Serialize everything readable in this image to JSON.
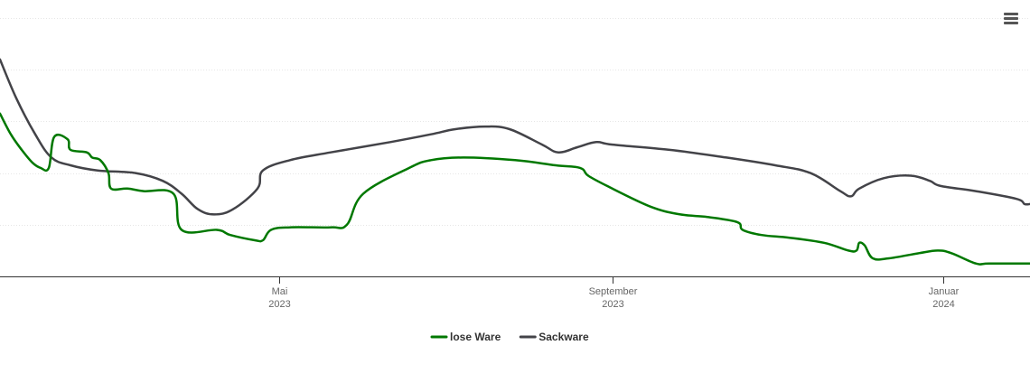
{
  "chart_data": {
    "type": "line",
    "title": "",
    "xlabel": "",
    "ylabel": "",
    "grid": true,
    "legend_position": "bottom",
    "x_axis_type": "date",
    "xlim": [
      "2023-01-18",
      "2024-02-02"
    ],
    "ylim": [
      0,
      100
    ],
    "x_ticks": [
      {
        "date": "2023-05-01",
        "label_month": "Mai",
        "label_year": "2023"
      },
      {
        "date": "2023-09-01",
        "label_month": "September",
        "label_year": "2023"
      },
      {
        "date": "2024-01-01",
        "label_month": "Januar",
        "label_year": "2024"
      }
    ],
    "series": [
      {
        "name": "lose Ware",
        "color": "#007800",
        "points": [
          [
            "2023-01-18",
            63
          ],
          [
            "2023-01-22",
            55
          ],
          [
            "2023-01-26",
            49
          ],
          [
            "2023-01-30",
            44
          ],
          [
            "2023-02-02",
            42
          ],
          [
            "2023-02-05",
            42
          ],
          [
            "2023-02-07",
            54
          ],
          [
            "2023-02-12",
            53
          ],
          [
            "2023-02-13",
            49
          ],
          [
            "2023-02-19",
            48
          ],
          [
            "2023-02-21",
            46
          ],
          [
            "2023-02-24",
            45
          ],
          [
            "2023-02-27",
            40
          ],
          [
            "2023-02-28",
            34
          ],
          [
            "2023-03-06",
            34
          ],
          [
            "2023-03-12",
            33
          ],
          [
            "2023-03-23",
            32
          ],
          [
            "2023-03-26",
            18
          ],
          [
            "2023-04-08",
            18
          ],
          [
            "2023-04-13",
            16
          ],
          [
            "2023-04-22",
            14
          ],
          [
            "2023-04-25",
            14
          ],
          [
            "2023-04-28",
            18
          ],
          [
            "2023-05-05",
            19
          ],
          [
            "2023-05-20",
            19
          ],
          [
            "2023-05-26",
            20
          ],
          [
            "2023-06-01",
            32
          ],
          [
            "2023-06-18",
            42
          ],
          [
            "2023-06-26",
            45
          ],
          [
            "2023-07-08",
            46
          ],
          [
            "2023-07-27",
            45
          ],
          [
            "2023-08-11",
            43
          ],
          [
            "2023-08-20",
            42
          ],
          [
            "2023-08-23",
            39
          ],
          [
            "2023-08-30",
            35
          ],
          [
            "2023-09-15",
            27
          ],
          [
            "2023-09-26",
            24
          ],
          [
            "2023-10-06",
            23
          ],
          [
            "2023-10-17",
            21
          ],
          [
            "2023-10-19",
            18
          ],
          [
            "2023-10-26",
            16
          ],
          [
            "2023-11-05",
            15
          ],
          [
            "2023-11-18",
            13
          ],
          [
            "2023-11-27",
            10
          ],
          [
            "2023-11-30",
            10
          ],
          [
            "2023-12-01",
            13
          ],
          [
            "2023-12-03",
            12
          ],
          [
            "2023-12-06",
            7
          ],
          [
            "2023-12-12",
            7
          ],
          [
            "2023-12-23",
            9
          ],
          [
            "2023-12-30",
            10
          ],
          [
            "2024-01-04",
            9
          ],
          [
            "2024-01-13",
            5
          ],
          [
            "2024-01-18",
            5
          ],
          [
            "2024-02-02",
            5
          ]
        ]
      },
      {
        "name": "Sackware",
        "color": "#434348",
        "points": [
          [
            "2023-01-18",
            84
          ],
          [
            "2023-01-24",
            69
          ],
          [
            "2023-01-31",
            55
          ],
          [
            "2023-02-06",
            46
          ],
          [
            "2023-02-13",
            43
          ],
          [
            "2023-02-23",
            41
          ],
          [
            "2023-03-09",
            40
          ],
          [
            "2023-03-19",
            37
          ],
          [
            "2023-03-26",
            32
          ],
          [
            "2023-04-01",
            26
          ],
          [
            "2023-04-07",
            24
          ],
          [
            "2023-04-14",
            26
          ],
          [
            "2023-04-23",
            34
          ],
          [
            "2023-04-25",
            41
          ],
          [
            "2023-05-05",
            45
          ],
          [
            "2023-05-20",
            48
          ],
          [
            "2023-06-11",
            52
          ],
          [
            "2023-06-26",
            55
          ],
          [
            "2023-07-05",
            57
          ],
          [
            "2023-07-16",
            58
          ],
          [
            "2023-07-25",
            57
          ],
          [
            "2023-08-06",
            51
          ],
          [
            "2023-08-12",
            48
          ],
          [
            "2023-08-19",
            50
          ],
          [
            "2023-08-26",
            52
          ],
          [
            "2023-09-01",
            51
          ],
          [
            "2023-09-22",
            49
          ],
          [
            "2023-10-13",
            46
          ],
          [
            "2023-10-31",
            43
          ],
          [
            "2023-11-13",
            40
          ],
          [
            "2023-11-24",
            33
          ],
          [
            "2023-11-28",
            31
          ],
          [
            "2023-12-01",
            34
          ],
          [
            "2023-12-10",
            38
          ],
          [
            "2023-12-20",
            39
          ],
          [
            "2023-12-27",
            37
          ],
          [
            "2023-12-31",
            35
          ],
          [
            "2024-01-13",
            33
          ],
          [
            "2024-01-28",
            30
          ],
          [
            "2024-01-31",
            28
          ],
          [
            "2024-02-02",
            28
          ]
        ]
      }
    ]
  },
  "menu": {
    "icon": "hamburger-menu-icon"
  }
}
